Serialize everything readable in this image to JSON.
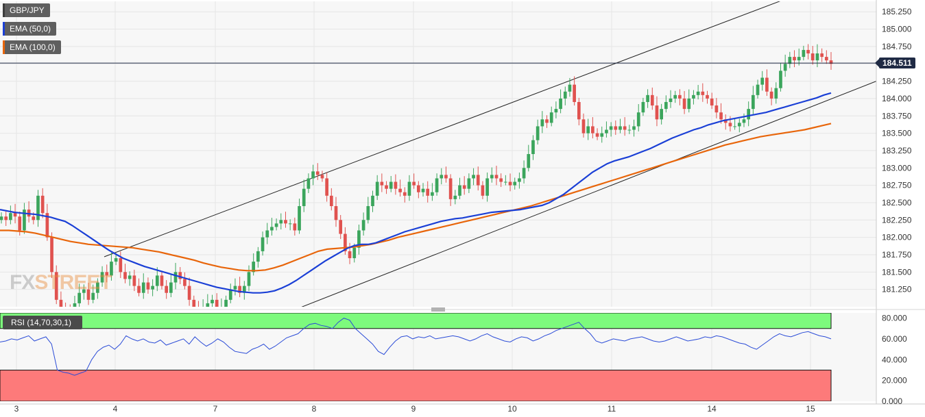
{
  "symbol": "GBP/JPY",
  "legend": [
    {
      "label": "EMA (50,0)",
      "color": "#1a3fd6"
    },
    {
      "label": "EMA (100,0)",
      "color": "#e8650a"
    }
  ],
  "current_price": "184.511",
  "rsi_label": "RSI (14,70,30,1)",
  "watermark": {
    "part1": "FX",
    "part2": "STREET"
  },
  "chart_data": [
    {
      "type": "candlestick",
      "y_ticks": [
        "185.250",
        "185.000",
        "184.750",
        "184.500",
        "184.250",
        "184.000",
        "183.750",
        "183.500",
        "183.250",
        "183.000",
        "182.750",
        "182.500",
        "182.250",
        "182.000",
        "181.750",
        "181.500",
        "181.250"
      ],
      "ylim": [
        181.0,
        185.4
      ],
      "x_ticks": [
        "3",
        "4",
        "7",
        "8",
        "9",
        "10",
        "11",
        "14",
        "15"
      ],
      "last_price": 184.511,
      "colors": {
        "up": "#3ba55c",
        "down": "#e0524f"
      },
      "closes": [
        182.3,
        182.25,
        182.35,
        182.3,
        182.1,
        182.4,
        182.3,
        182.25,
        182.6,
        182.35,
        182.0,
        181.5,
        181.1,
        181.0,
        180.95,
        180.9,
        181.05,
        181.2,
        181.25,
        181.1,
        181.2,
        181.35,
        181.5,
        181.45,
        181.65,
        181.7,
        181.5,
        181.4,
        181.45,
        181.3,
        181.2,
        181.35,
        181.25,
        181.3,
        181.45,
        181.3,
        181.2,
        181.35,
        181.5,
        181.4,
        181.3,
        181.1,
        181.0,
        180.9,
        181.0,
        181.05,
        181.1,
        180.95,
        181.0,
        181.1,
        181.25,
        181.3,
        181.2,
        181.3,
        181.5,
        181.65,
        181.8,
        182.0,
        182.1,
        182.15,
        182.2,
        182.25,
        182.2,
        182.2,
        182.1,
        182.45,
        182.7,
        182.85,
        182.95,
        182.9,
        182.85,
        182.6,
        182.45,
        182.25,
        182.05,
        181.8,
        181.7,
        181.85,
        182.1,
        182.25,
        182.45,
        182.6,
        182.8,
        182.75,
        182.7,
        182.8,
        182.7,
        182.65,
        182.6,
        182.8,
        182.75,
        182.65,
        182.7,
        182.6,
        182.65,
        182.85,
        182.9,
        182.85,
        182.55,
        182.6,
        182.75,
        182.7,
        182.85,
        182.9,
        182.75,
        182.6,
        182.85,
        182.9,
        182.85,
        182.8,
        182.8,
        182.75,
        182.8,
        182.85,
        183.0,
        183.2,
        183.4,
        183.6,
        183.7,
        183.65,
        183.8,
        183.85,
        184.0,
        184.1,
        184.2,
        183.95,
        183.7,
        183.5,
        183.6,
        183.5,
        183.45,
        183.5,
        183.55,
        183.6,
        183.55,
        183.6,
        183.55,
        183.55,
        183.6,
        183.8,
        183.95,
        184.05,
        183.9,
        183.7,
        183.85,
        183.95,
        184.0,
        184.05,
        184.0,
        183.85,
        184.0,
        184.05,
        184.1,
        184.05,
        184.0,
        183.9,
        183.8,
        183.7,
        183.65,
        183.6,
        183.6,
        183.65,
        183.7,
        183.85,
        184.05,
        184.2,
        184.3,
        184.1,
        184.0,
        184.15,
        184.4,
        184.5,
        184.6,
        184.55,
        184.6,
        184.7,
        184.65,
        184.55,
        184.65,
        184.6,
        184.55,
        184.5
      ],
      "ema50": [
        182.4,
        182.38,
        182.36,
        182.35,
        182.34,
        182.33,
        182.31,
        182.29,
        182.26,
        182.23,
        182.17,
        182.1,
        182.03,
        181.96,
        181.89,
        181.82,
        181.76,
        181.7,
        181.66,
        181.62,
        181.58,
        181.55,
        181.52,
        181.49,
        181.46,
        181.43,
        181.4,
        181.37,
        181.34,
        181.31,
        181.28,
        181.26,
        181.24,
        181.22,
        181.21,
        181.2,
        181.2,
        181.21,
        181.23,
        181.27,
        181.32,
        181.38,
        181.45,
        181.52,
        181.59,
        181.66,
        181.72,
        181.78,
        181.84,
        181.88,
        181.9,
        181.9,
        181.92,
        181.96,
        182.0,
        182.04,
        182.08,
        182.11,
        182.14,
        182.17,
        182.2,
        182.23,
        182.25,
        182.27,
        182.28,
        182.3,
        182.32,
        182.34,
        182.36,
        182.37,
        182.38,
        182.39,
        182.4,
        182.42,
        182.44,
        182.46,
        182.5,
        182.56,
        182.62,
        182.7,
        182.78,
        182.86,
        182.94,
        183.0,
        183.06,
        183.1,
        183.13,
        183.16,
        183.2,
        183.24,
        183.28,
        183.33,
        183.38,
        183.43,
        183.47,
        183.51,
        183.55,
        183.58,
        183.62,
        183.65,
        183.68,
        183.7,
        183.72,
        183.74,
        183.76,
        183.78,
        183.8,
        183.83,
        183.86,
        183.89,
        183.92,
        183.95,
        183.98,
        184.01,
        184.05,
        184.08
      ],
      "ema100": [
        182.1,
        182.1,
        182.09,
        182.08,
        182.06,
        182.03,
        182.0,
        181.97,
        181.94,
        181.92,
        181.9,
        181.89,
        181.88,
        181.87,
        181.86,
        181.85,
        181.83,
        181.81,
        181.79,
        181.76,
        181.73,
        181.7,
        181.67,
        181.63,
        181.6,
        181.57,
        181.55,
        181.53,
        181.52,
        181.52,
        181.53,
        181.56,
        181.6,
        181.65,
        181.7,
        181.75,
        181.8,
        181.83,
        181.84,
        181.85,
        181.86,
        181.88,
        181.9,
        181.93,
        181.96,
        182.0,
        182.03,
        182.06,
        182.09,
        182.12,
        182.15,
        182.18,
        182.21,
        182.24,
        182.27,
        182.3,
        182.33,
        182.36,
        182.39,
        182.42,
        182.45,
        182.49,
        182.53,
        182.57,
        182.61,
        182.65,
        182.69,
        182.73,
        182.77,
        182.81,
        182.85,
        182.89,
        182.93,
        182.97,
        183.01,
        183.05,
        183.09,
        183.13,
        183.17,
        183.21,
        183.25,
        183.29,
        183.33,
        183.36,
        183.39,
        183.42,
        183.45,
        183.47,
        183.49,
        183.51,
        183.53,
        183.55,
        183.58,
        183.61,
        183.64
      ],
      "channel": {
        "upper": [
          [
            4.0,
            181.72
          ],
          [
            15.0,
            185.3
          ]
        ],
        "lower": [
          [
            8.0,
            180.95
          ],
          [
            15.5,
            184.25
          ]
        ]
      }
    },
    {
      "type": "line",
      "name": "RSI (14,70,30,1)",
      "y_ticks": [
        "80.000",
        "60.000",
        "40.000",
        "20.000",
        "0.000"
      ],
      "ylim": [
        0,
        85
      ],
      "x_ticks": [
        "3",
        "4",
        "7",
        "8",
        "9",
        "10",
        "11",
        "14",
        "15"
      ],
      "bands": {
        "overbought": 70,
        "oversold": 30
      },
      "values": [
        57,
        58,
        60,
        59,
        61,
        63,
        58,
        60,
        62,
        55,
        30,
        28,
        27,
        25,
        27,
        29,
        40,
        48,
        52,
        54,
        50,
        55,
        63,
        60,
        58,
        60,
        57,
        56,
        59,
        54,
        56,
        58,
        60,
        55,
        62,
        57,
        53,
        56,
        60,
        57,
        52,
        48,
        47,
        46,
        50,
        52,
        55,
        50,
        53,
        57,
        61,
        63,
        65,
        70,
        74,
        75,
        73,
        72,
        70,
        76,
        80,
        78,
        70,
        65,
        60,
        55,
        48,
        45,
        52,
        58,
        62,
        63,
        60,
        62,
        61,
        63,
        60,
        61,
        62,
        63,
        62,
        60,
        58,
        60,
        63,
        65,
        62,
        60,
        58,
        57,
        60,
        62,
        61,
        58,
        60,
        63,
        65,
        68,
        70,
        72,
        74,
        76,
        70,
        65,
        58,
        56,
        58,
        60,
        59,
        58,
        60,
        61,
        62,
        60,
        58,
        57,
        58,
        60,
        62,
        60,
        58,
        59,
        60,
        62,
        61,
        63,
        62,
        60,
        58,
        56,
        55,
        52,
        50,
        54,
        58,
        62,
        65,
        63,
        62,
        64,
        66,
        67,
        65,
        63,
        62,
        60
      ],
      "colors": {
        "overbought": "#7dfa7d",
        "oversold": "#fd7a7a",
        "line": "#2a4bd7"
      }
    }
  ]
}
